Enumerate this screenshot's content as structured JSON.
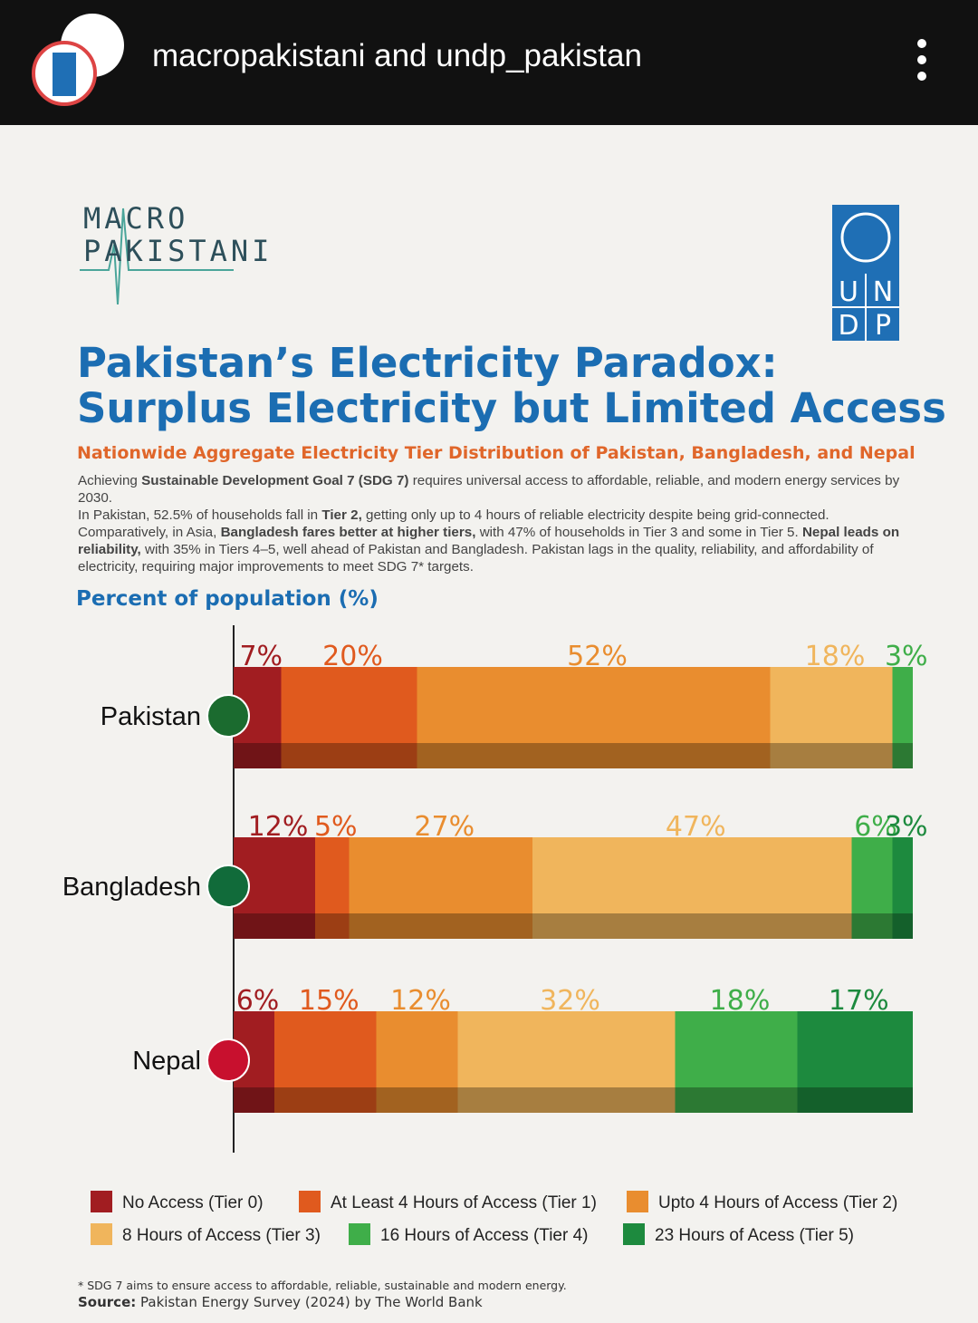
{
  "header": {
    "account": "macropakistani and undp_pakistan"
  },
  "logos": {
    "macro": [
      "MACRO",
      "PAKISTANI"
    ],
    "undp": [
      "U",
      "N",
      "D",
      "P"
    ]
  },
  "chart_data": {
    "type": "stacked-bar-horizontal",
    "title": [
      "Pakistan’s Electricity Paradox:",
      "Surplus Electricity but Limited Access"
    ],
    "subtitle": "Nationwide Aggregate Electricity Tier Distribution of Pakistan, Bangladesh, and Nepal",
    "description": [
      [
        "Achieving ",
        "Sustainable Development Goal 7 (SDG 7)",
        " requires universal access to affordable, reliable, and modern energy services by 2030."
      ],
      [
        "In Pakistan, 52.5% of households fall in ",
        "Tier 2,",
        " getting only up to 4 hours of reliable electricity despite being grid-connected. Comparatively, in Asia, ",
        "Bangladesh fares better at higher tiers,",
        " with 47% of households in Tier 3 and some in Tier 5. ",
        "Nepal leads on reliability,",
        " with 35% in Tiers 4–5, well ahead of Pakistan and Bangladesh. Pakistan lags in the quality, reliability, and affordability of electricity, requiring major improvements to meet SDG 7* targets."
      ]
    ],
    "x_label": "Percent of population (%)",
    "categories": [
      "Pakistan",
      "Bangladesh",
      "Nepal"
    ],
    "xlim": [
      0,
      100
    ],
    "series": [
      {
        "name": "No Access (Tier 0)",
        "color": "#a11d21",
        "values": [
          7,
          12,
          6
        ],
        "value_labels": [
          "7%",
          "12%",
          "6%"
        ]
      },
      {
        "name": "At Least 4 Hours of Access (Tier 1)",
        "color": "#e05a1e",
        "values": [
          20,
          5,
          15
        ],
        "value_labels": [
          "20%",
          "5%",
          "15%"
        ]
      },
      {
        "name": "Upto 4 Hours of Access (Tier 2)",
        "color": "#e98d2f",
        "values": [
          52,
          27,
          12
        ],
        "value_labels": [
          "52%",
          "27%",
          "12%"
        ]
      },
      {
        "name": "8 Hours of Access (Tier 3)",
        "color": "#f0b55c",
        "values": [
          18,
          47,
          32
        ],
        "value_labels": [
          "18%",
          "47%",
          "32%"
        ]
      },
      {
        "name": "16 Hours of Access (Tier 4)",
        "color": "#3fae49",
        "values": [
          3,
          6,
          18
        ],
        "value_labels": [
          "3%",
          "6%",
          "18%"
        ]
      },
      {
        "name": "23 Hours of Acess (Tier 5)",
        "color": "#1d8a3e",
        "values": [
          null,
          3,
          17
        ],
        "value_labels": [
          null,
          "3%",
          "17%"
        ]
      }
    ],
    "footnote": "* SDG 7 aims to ensure access to affordable, reliable, sustainable and modern energy.",
    "source": [
      "Source:",
      " Pakistan Energy Survey (2024) by The World Bank"
    ]
  }
}
